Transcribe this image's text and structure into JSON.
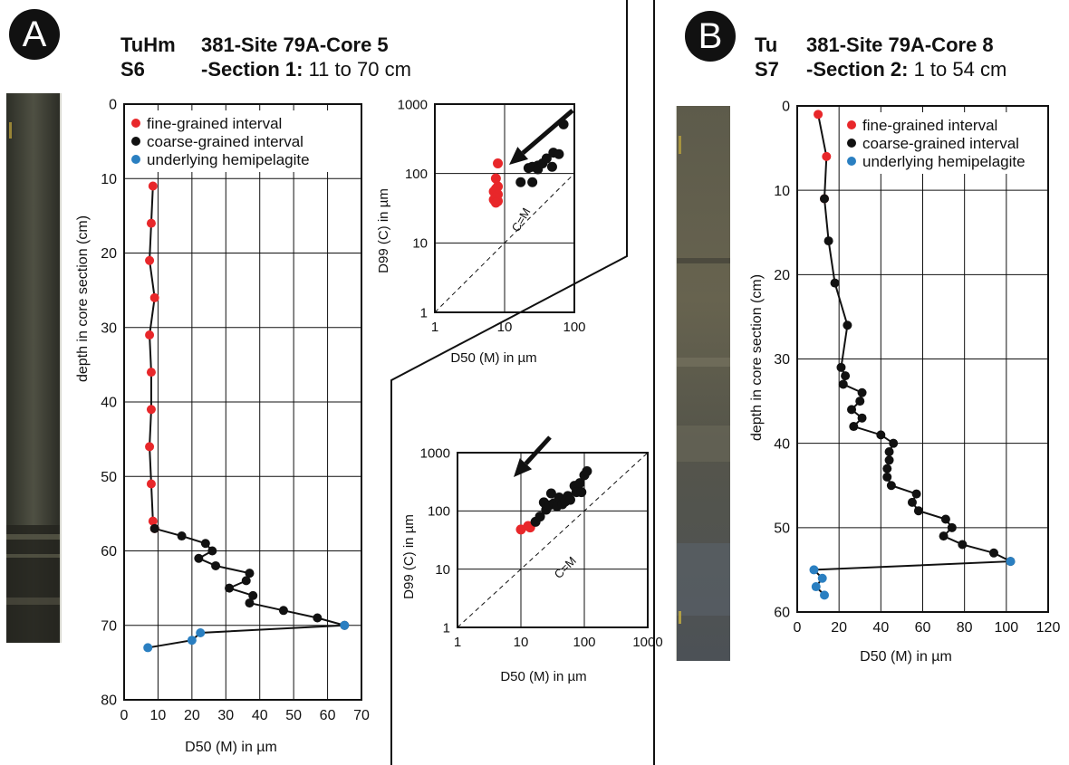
{
  "panel_a": {
    "badge": "A",
    "code1": "TuHm",
    "code2": "S6",
    "title1": "381-Site 79A-Core 5",
    "title2_bold": "-Section 1:",
    "title2_rest": " 11 to 70 cm"
  },
  "panel_b": {
    "badge": "B",
    "code1": "Tu",
    "code2": "S7",
    "title1": "381-Site 79A-Core 8",
    "title2_bold": "-Section 2:",
    "title2_rest": " 1 to 54 cm"
  },
  "colors": {
    "fine": "#e8272a",
    "coarse": "#111111",
    "hemipelagite": "#2a7fc1"
  },
  "chart_data": [
    {
      "id": "profileA",
      "type": "line",
      "xlabel": "D50 (M) in µm",
      "ylabel": "depth in core section (cm)",
      "xlim": [
        0,
        70
      ],
      "ylim": [
        0,
        80
      ],
      "y_inverted": true,
      "xticks": [
        0,
        10,
        20,
        30,
        40,
        50,
        60,
        70
      ],
      "yticks": [
        0,
        10,
        20,
        30,
        40,
        50,
        60,
        70,
        80
      ],
      "grid": true,
      "legend": [
        "fine-grained interval",
        "coarse-grained interval",
        "underlying hemipelagite"
      ],
      "legend_position": "top-left",
      "series": [
        {
          "name": "fine-grained interval",
          "color": "fine",
          "points": [
            [
              8.5,
              11
            ],
            [
              8,
              16
            ],
            [
              7.5,
              21
            ],
            [
              9,
              26
            ],
            [
              7.5,
              31
            ],
            [
              8,
              36
            ],
            [
              8,
              41
            ],
            [
              7.5,
              46
            ],
            [
              8,
              51
            ],
            [
              8.5,
              56
            ],
            [
              9,
              57
            ]
          ]
        },
        {
          "name": "coarse-grained interval",
          "color": "coarse",
          "points": [
            [
              9,
              57
            ],
            [
              17,
              58
            ],
            [
              24,
              59
            ],
            [
              26,
              60
            ],
            [
              22,
              61
            ],
            [
              27,
              62
            ],
            [
              37,
              63
            ],
            [
              36,
              64
            ],
            [
              31,
              65
            ],
            [
              38,
              66
            ],
            [
              37,
              67
            ],
            [
              47,
              68
            ],
            [
              57,
              69
            ],
            [
              65,
              70
            ]
          ]
        },
        {
          "name": "underlying hemipelagite",
          "color": "hemipelagite",
          "points": [
            [
              65,
              70
            ],
            [
              22.5,
              71
            ],
            [
              20,
              72
            ],
            [
              7,
              73
            ]
          ]
        }
      ]
    },
    {
      "id": "scatterA",
      "type": "scatter",
      "xscale": "log",
      "yscale": "log",
      "xlabel": "D50 (M) in µm",
      "ylabel": "D99 (C) in µm",
      "xlim": [
        1,
        100
      ],
      "ylim": [
        1,
        1000
      ],
      "xticks": [
        1,
        10,
        100
      ],
      "yticks": [
        1,
        10,
        100,
        1000
      ],
      "grid": true,
      "reference_line": "C=M",
      "series": [
        {
          "name": "fine-grained interval",
          "color": "fine",
          "points": [
            [
              8,
              140
            ],
            [
              7.5,
              85
            ],
            [
              8,
              65
            ],
            [
              7.5,
              60
            ],
            [
              7,
              55
            ],
            [
              8,
              50
            ],
            [
              7.5,
              45
            ],
            [
              7,
              42
            ],
            [
              8,
              40
            ],
            [
              7.5,
              38
            ]
          ]
        },
        {
          "name": "coarse-grained interval",
          "color": "coarse",
          "points": [
            [
              17,
              75
            ],
            [
              25,
              75
            ],
            [
              22,
              120
            ],
            [
              25,
              125
            ],
            [
              30,
              130
            ],
            [
              30,
              115
            ],
            [
              35,
              140
            ],
            [
              40,
              165
            ],
            [
              48,
              125
            ],
            [
              50,
              200
            ],
            [
              60,
              190
            ],
            [
              70,
              510
            ]
          ]
        }
      ]
    },
    {
      "id": "scatterB",
      "type": "scatter",
      "xscale": "log",
      "yscale": "log",
      "xlabel": "D50 (M) in µm",
      "ylabel": "D99 (C) in µm",
      "xlim": [
        1,
        1000
      ],
      "ylim": [
        1,
        1000
      ],
      "xticks": [
        1,
        10,
        100,
        1000
      ],
      "yticks": [
        1,
        10,
        100,
        1000
      ],
      "grid": true,
      "reference_line": "C=M",
      "series": [
        {
          "name": "fine-grained interval",
          "color": "fine",
          "points": [
            [
              10,
              48
            ],
            [
              13,
              55
            ],
            [
              14,
              52
            ]
          ]
        },
        {
          "name": "coarse-grained interval",
          "color": "coarse",
          "points": [
            [
              17,
              65
            ],
            [
              20,
              80
            ],
            [
              25,
              105
            ],
            [
              23,
              140
            ],
            [
              28,
              125
            ],
            [
              30,
              200
            ],
            [
              33,
              135
            ],
            [
              37,
              120
            ],
            [
              40,
              170
            ],
            [
              45,
              130
            ],
            [
              50,
              145
            ],
            [
              55,
              180
            ],
            [
              60,
              155
            ],
            [
              70,
              270
            ],
            [
              75,
              210
            ],
            [
              85,
              300
            ],
            [
              90,
              210
            ],
            [
              100,
              410
            ],
            [
              110,
              480
            ]
          ]
        }
      ]
    },
    {
      "id": "profileB",
      "type": "line",
      "xlabel": "D50 (M) in µm",
      "ylabel": "depth in core section (cm)",
      "xlim": [
        0,
        120
      ],
      "ylim": [
        0,
        60
      ],
      "y_inverted": true,
      "xticks": [
        0,
        20,
        40,
        60,
        80,
        100,
        120
      ],
      "yticks": [
        0,
        10,
        20,
        30,
        40,
        50,
        60
      ],
      "grid": true,
      "legend": [
        "fine-grained interval",
        "coarse-grained interval",
        "underlying hemipelagite"
      ],
      "legend_position": "top-right",
      "series": [
        {
          "name": "fine-grained interval",
          "color": "fine",
          "points": [
            [
              10,
              1
            ],
            [
              14,
              6
            ],
            [
              13,
              11
            ]
          ]
        },
        {
          "name": "coarse-grained interval",
          "color": "coarse",
          "points": [
            [
              13,
              11
            ],
            [
              15,
              16
            ],
            [
              18,
              21
            ],
            [
              24,
              26
            ],
            [
              21,
              31
            ],
            [
              23,
              32
            ],
            [
              22,
              33
            ],
            [
              31,
              34
            ],
            [
              30,
              35
            ],
            [
              26,
              36
            ],
            [
              31,
              37
            ],
            [
              27,
              38
            ],
            [
              40,
              39
            ],
            [
              46,
              40
            ],
            [
              44,
              41
            ],
            [
              44,
              42
            ],
            [
              43,
              43
            ],
            [
              43,
              44
            ],
            [
              45,
              45
            ],
            [
              57,
              46
            ],
            [
              55,
              47
            ],
            [
              58,
              48
            ],
            [
              71,
              49
            ],
            [
              74,
              50
            ],
            [
              70,
              51
            ],
            [
              79,
              52
            ],
            [
              94,
              53
            ],
            [
              102,
              54
            ]
          ]
        },
        {
          "name": "underlying hemipelagite",
          "color": "hemipelagite",
          "points": [
            [
              102,
              54
            ],
            [
              8,
              55
            ],
            [
              12,
              56
            ],
            [
              9,
              57
            ],
            [
              13,
              58
            ]
          ]
        }
      ]
    }
  ]
}
